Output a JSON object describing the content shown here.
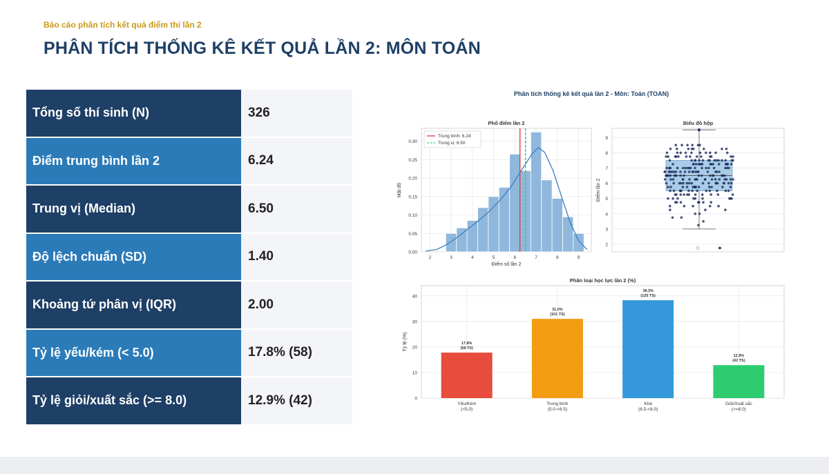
{
  "header": {
    "subtitle": "Báo cáo phân tích kết quả điểm thi lần 2",
    "title": "PHÂN TÍCH THỐNG KÊ KẾT QUẢ LẦN 2: MÔN TOÁN"
  },
  "stats": [
    {
      "label": "Tổng số thí sinh (N)",
      "value": "326",
      "style": "dark"
    },
    {
      "label": "Điểm trung bình lần 2",
      "value": "6.24",
      "style": "light"
    },
    {
      "label": "Trung vị (Median)",
      "value": "6.50",
      "style": "dark"
    },
    {
      "label": "Độ lệch chuẩn (SD)",
      "value": "1.40",
      "style": "light"
    },
    {
      "label": "Khoảng tứ phân vị (IQR)",
      "value": "2.00",
      "style": "dark"
    },
    {
      "label": "Tỷ lệ yếu/kém (< 5.0)",
      "value": "17.8% (58)",
      "style": "light"
    },
    {
      "label": "Tỷ lệ giỏi/xuất sắc (>= 8.0)",
      "value": "12.9% (42)",
      "style": "dark"
    }
  ],
  "figure_title": "Phân tích thống kê kết quả lần 2 - Môn: Toán (TOAN)",
  "chart_data": [
    {
      "type": "bar",
      "title": "Phổ điểm lần 2",
      "xlabel": "Điểm số lần 2",
      "ylabel": "Mật độ",
      "xlim": [
        1.6,
        9.6
      ],
      "ylim": [
        0,
        0.335
      ],
      "xticks": [
        2,
        3,
        4,
        5,
        6,
        7,
        8,
        9
      ],
      "yticks": [
        0.0,
        0.05,
        0.1,
        0.15,
        0.2,
        0.25,
        0.3
      ],
      "bin_edges": [
        2.75,
        3.25,
        3.75,
        4.25,
        4.75,
        5.25,
        5.75,
        6.25,
        6.75,
        7.25,
        7.75,
        8.25,
        8.75,
        9.25
      ],
      "values": [
        0.05,
        0.065,
        0.085,
        0.12,
        0.15,
        0.175,
        0.265,
        0.22,
        0.325,
        0.195,
        0.145,
        0.095,
        0.05
      ],
      "kde": [
        [
          1.8,
          0.002
        ],
        [
          2.3,
          0.006
        ],
        [
          2.8,
          0.02
        ],
        [
          3.3,
          0.04
        ],
        [
          3.8,
          0.062
        ],
        [
          4.3,
          0.085
        ],
        [
          4.8,
          0.11
        ],
        [
          5.3,
          0.14
        ],
        [
          5.8,
          0.175
        ],
        [
          6.3,
          0.22
        ],
        [
          6.8,
          0.265
        ],
        [
          7.1,
          0.283
        ],
        [
          7.4,
          0.27
        ],
        [
          7.8,
          0.22
        ],
        [
          8.2,
          0.15
        ],
        [
          8.6,
          0.08
        ],
        [
          9.0,
          0.03
        ],
        [
          9.4,
          0.006
        ]
      ],
      "mean": 6.24,
      "median": 6.5,
      "legend": [
        "Trung bình: 6.24",
        "Trung vị: 6.50"
      ],
      "legend_position": "top-left",
      "grid": true,
      "colors": {
        "bar": "#8fb8dc",
        "bar_edge": "#ffffff",
        "kde": "#3d7fbf",
        "mean": "#d9403a",
        "median": "#2ecc71"
      }
    },
    {
      "type": "box",
      "title": "Biểu đồ hộp",
      "ylabel": "Điểm lần 2",
      "ylim": [
        1.5,
        9.6
      ],
      "yticks": [
        2,
        3,
        4,
        5,
        6,
        7,
        8,
        9
      ],
      "q1": 5.5,
      "median": 6.5,
      "q3": 7.5,
      "whisker_low": 3.0,
      "whisker_high": 9.5,
      "outliers": [
        1.75
      ],
      "grid": true,
      "colors": {
        "box": "#a9cde6",
        "points": "#1d2b5e"
      }
    },
    {
      "type": "bar",
      "title": "Phân loại học lực lần 2 (%)",
      "ylabel": "Tỷ lệ (%)",
      "ylim": [
        0,
        44
      ],
      "yticks": [
        0,
        10,
        20,
        30,
        40
      ],
      "categories": [
        {
          "name": "Yếu/Kém",
          "range": "(<5.0)"
        },
        {
          "name": "Trung bình",
          "range": "(5.0-<6.5)"
        },
        {
          "name": "Khá",
          "range": "(6.5-<8.0)"
        },
        {
          "name": "Giỏi/Xuất sắc",
          "range": "(>=8.0)"
        }
      ],
      "values": [
        17.8,
        31.0,
        38.3,
        12.9
      ],
      "labels": [
        {
          "pct": "17.8%",
          "count": "(58 TS)"
        },
        {
          "pct": "31.0%",
          "count": "(101 TS)"
        },
        {
          "pct": "38.3%",
          "count": "(125 TS)"
        },
        {
          "pct": "12.9%",
          "count": "(42 TS)"
        }
      ],
      "grid": true,
      "colors": [
        "#e74c3c",
        "#f39c12",
        "#3498db",
        "#2ecc71"
      ]
    }
  ]
}
